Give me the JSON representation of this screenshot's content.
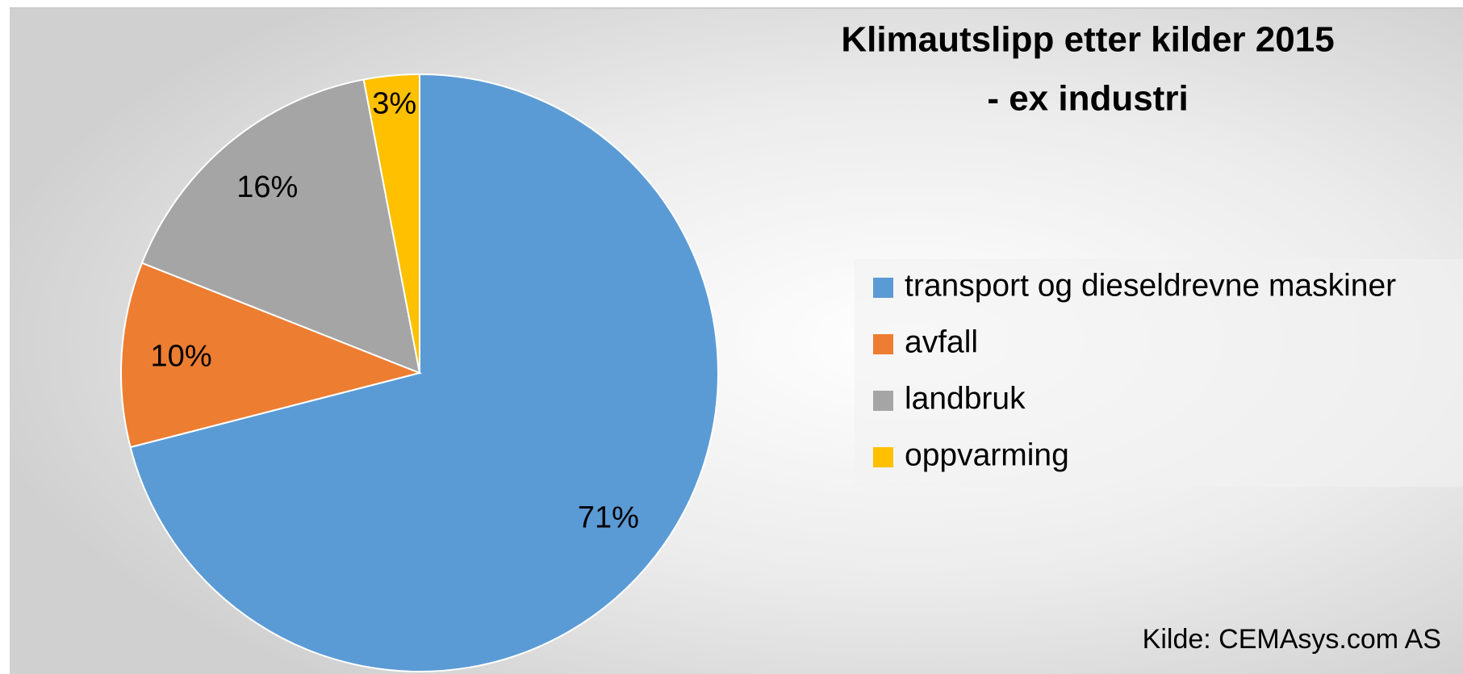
{
  "chart_data": {
    "type": "pie",
    "title": "Klimautslipp etter kilder 2015",
    "subtitle": "- ex industri",
    "categories": [
      "transport og dieseldrevne maskiner",
      "avfall",
      "landbruk",
      "oppvarming"
    ],
    "values": [
      71,
      10,
      16,
      3
    ],
    "value_labels": [
      "71%",
      "10%",
      "16%",
      "3%"
    ],
    "colors": [
      "#5b9bd5",
      "#ed7d31",
      "#a5a5a5",
      "#ffc000"
    ],
    "legend": "right",
    "annotation": "Kilde: CEMAsys.com AS"
  }
}
